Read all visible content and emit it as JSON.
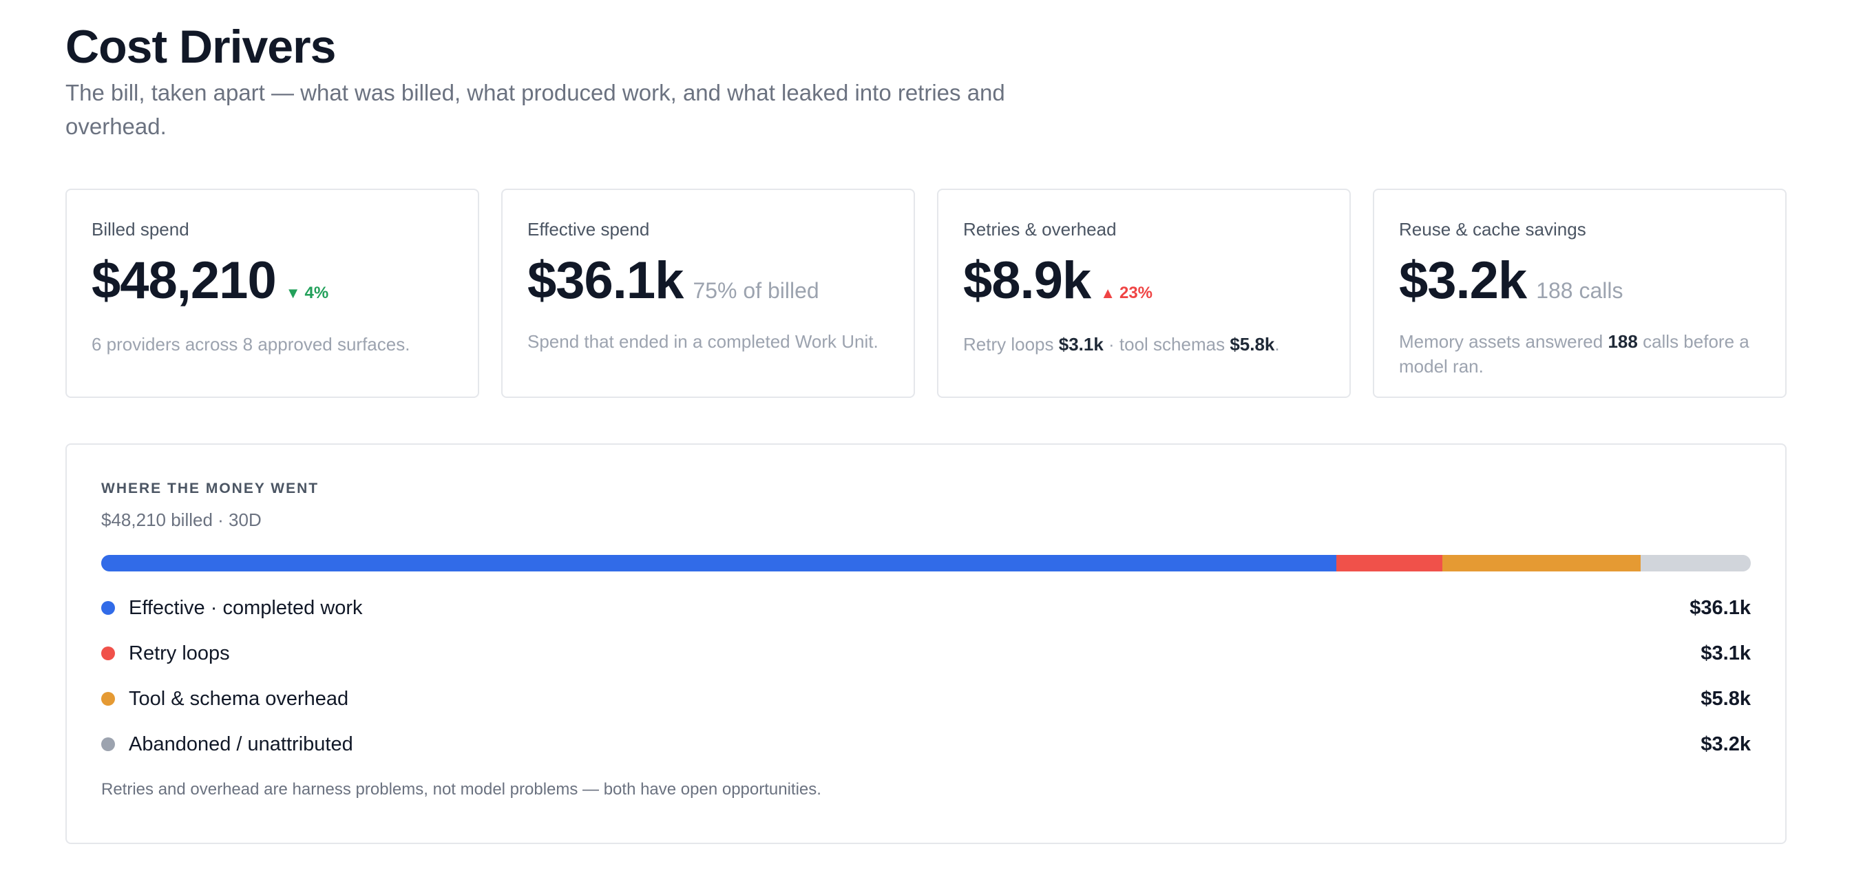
{
  "header": {
    "title": "Cost Drivers",
    "subtitle": "The bill, taken apart — what was billed, what produced work, and what leaked into retries and overhead."
  },
  "cards": [
    {
      "label": "Billed spend",
      "value": "$48,210",
      "delta": "4%",
      "delta_dir": "down",
      "desc": "6 providers across 8 approved surfaces."
    },
    {
      "label": "Effective spend",
      "value": "$36.1k",
      "aside": "75% of billed",
      "desc": "Spend that ended in a completed Work Unit."
    },
    {
      "label": "Retries & overhead",
      "value": "$8.9k",
      "delta": "23%",
      "delta_dir": "up",
      "desc_parts": [
        "Retry loops ",
        "$3.1k",
        " · tool schemas ",
        "$5.8k",
        "."
      ]
    },
    {
      "label": "Reuse & cache savings",
      "value": "$3.2k",
      "aside": "188 calls",
      "desc_parts": [
        "Memory assets answered ",
        "188",
        " calls before a model ran."
      ]
    }
  ],
  "breakdown": {
    "eyebrow": "WHERE THE MONEY WENT",
    "subtitle": "$48,210 billed · 30D",
    "total": 48210,
    "segments": [
      {
        "label": "Effective · completed work",
        "value_label": "$36.1k",
        "amount": 36100,
        "bar_color": "#316be8",
        "dot_color": "#316be8"
      },
      {
        "label": "Retry loops",
        "value_label": "$3.1k",
        "amount": 3100,
        "bar_color": "#f0514a",
        "dot_color": "#f0514a"
      },
      {
        "label": "Tool & schema overhead",
        "value_label": "$5.8k",
        "amount": 5800,
        "bar_color": "#e59a33",
        "dot_color": "#e59a33"
      },
      {
        "label": "Abandoned / unattributed",
        "value_label": "$3.2k",
        "amount": 3200,
        "bar_color": "#d1d5db",
        "dot_color": "#9ca3af"
      }
    ],
    "footnote": "Retries and overhead are harness problems, not model problems — both have open opportunities."
  }
}
